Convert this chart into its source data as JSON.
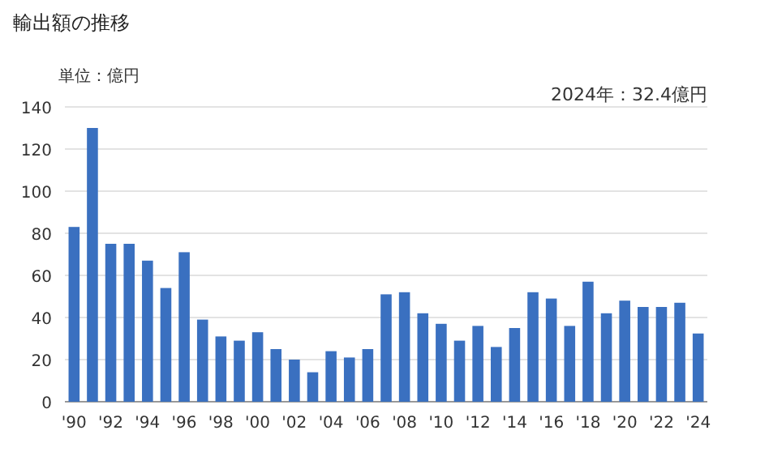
{
  "chart_data": {
    "type": "bar",
    "title": "輸出額の推移",
    "ylabel": "単位：億円",
    "annotations": [
      "2024年：32.4億円"
    ],
    "categories": [
      "'90",
      null,
      "'92",
      null,
      "'94",
      null,
      "'96",
      null,
      "'98",
      null,
      "'00",
      null,
      "'02",
      null,
      "'04",
      null,
      "'06",
      null,
      "'08",
      null,
      "'10",
      null,
      "'12",
      null,
      "'14",
      null,
      "'16",
      null,
      "'18",
      null,
      "'20",
      null,
      "'22",
      null,
      "'24"
    ],
    "series": [
      {
        "color": "#3a70c0",
        "values": [
          83,
          130,
          75,
          75,
          67,
          54,
          71,
          39,
          31,
          29,
          33,
          25,
          20,
          14,
          24,
          21,
          25,
          51,
          52,
          42,
          37,
          29,
          36,
          26,
          35,
          52,
          49,
          36,
          57,
          42,
          48,
          45,
          45,
          47,
          32.4
        ]
      }
    ],
    "ylim": [
      0,
      140
    ],
    "yticks": [
      0,
      20,
      40,
      60,
      80,
      100,
      120,
      140
    ],
    "grid": "y"
  }
}
